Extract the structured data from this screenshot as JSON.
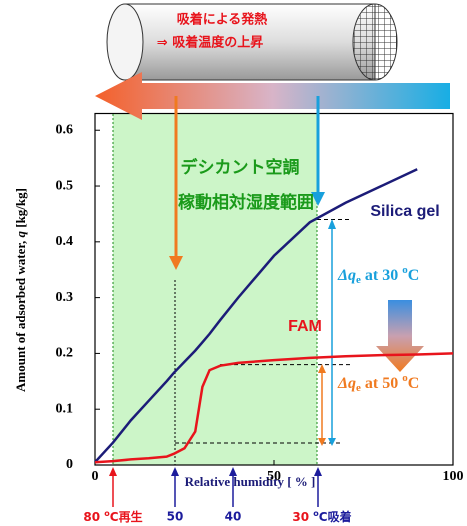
{
  "chart_data": {
    "type": "line",
    "x": [
      0,
      5,
      10,
      15,
      20,
      22,
      25,
      28,
      30,
      32,
      35,
      40,
      50,
      60,
      70,
      80,
      90,
      100
    ],
    "series": [
      {
        "name": "Silica gel",
        "color": "#1c1c78",
        "values": [
          0.005,
          0.04,
          0.08,
          0.115,
          0.15,
          0.165,
          0.185,
          0.205,
          0.22,
          0.235,
          0.26,
          0.3,
          0.375,
          0.435,
          0.47,
          0.5,
          0.53,
          null
        ]
      },
      {
        "name": "FAM",
        "color": "#e8141c",
        "values": [
          0.005,
          0.007,
          0.01,
          0.012,
          0.015,
          0.02,
          0.03,
          0.06,
          0.14,
          0.17,
          0.178,
          0.183,
          0.188,
          0.192,
          0.195,
          0.197,
          0.198,
          0.2
        ]
      }
    ],
    "xlim": [
      0,
      100
    ],
    "xticks": [
      0,
      50,
      100
    ],
    "ylim": [
      0,
      0.63
    ],
    "yticks": [
      0,
      0.1,
      0.2,
      0.3,
      0.4,
      0.5,
      0.6
    ],
    "x_label": "Relative humidity  [ % ]",
    "y_label": {
      "before": "Amount of adsorbed water, ",
      "symbol": "q",
      "after": " [kg/kg]"
    },
    "heat_note": [
      "吸着による発熱",
      "⇒ 吸着温度の上昇"
    ],
    "range_note": [
      "デシカント空調",
      "稼動相対湿度範囲"
    ],
    "delta_30": {
      "symbol": "Δq",
      "sub": "e",
      "text": " at 30 ",
      "sup": "o",
      "unit": "C"
    },
    "delta_50": {
      "symbol": "Δq",
      "sub": "e",
      "text": " at 50 ",
      "sup": "o",
      "unit": "C"
    },
    "bottom_labels": [
      {
        "pre": "80 ",
        "sup": "o",
        "post": "C再生"
      },
      {
        "pre": "50"
      },
      {
        "pre": "40"
      },
      {
        "pre": "30 ",
        "sup": "o",
        "post": "C吸着"
      }
    ]
  }
}
